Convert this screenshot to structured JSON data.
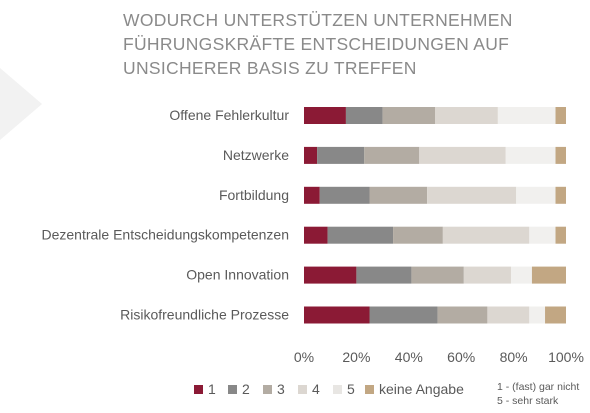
{
  "chart_data": {
    "type": "bar",
    "stacked": true,
    "orientation": "horizontal",
    "title_lines": [
      "WODURCH UNTERSTÜTZEN UNTERNEHMEN",
      "FÜHRUNGSKRÄFTE ENTSCHEIDUNGEN AUF",
      "UNSICHERER BASIS ZU TREFFEN"
    ],
    "categories": [
      "Offene Fehlerkultur",
      "Netzwerke",
      "Fortbildung",
      "Dezentrale Entscheidungskompetenzen",
      "Open Innovation",
      "Risikofreundliche Prozesse"
    ],
    "series": [
      {
        "name": "1",
        "color": "#8b1a35",
        "values": [
          16,
          5,
          6,
          9,
          20,
          25
        ]
      },
      {
        "name": "2",
        "color": "#888888",
        "values": [
          14,
          18,
          19,
          25,
          21,
          26
        ]
      },
      {
        "name": "3",
        "color": "#b3aca3",
        "values": [
          20,
          21,
          22,
          19,
          20,
          19
        ]
      },
      {
        "name": "4",
        "color": "#dcd7d1",
        "values": [
          24,
          33,
          34,
          33,
          18,
          16
        ]
      },
      {
        "name": "5",
        "color": "#f1f0ee",
        "values": [
          22,
          19,
          15,
          10,
          8,
          6
        ]
      },
      {
        "name": "keine Angabe",
        "color": "#c2a783",
        "values": [
          4,
          4,
          4,
          4,
          13,
          8
        ]
      }
    ],
    "xlim": [
      0,
      100
    ],
    "x_ticks": [
      "0%",
      "20%",
      "40%",
      "60%",
      "80%",
      "100%"
    ],
    "legend_position": "bottom",
    "note_lines": [
      "1 - (fast) gar nicht",
      "5 - sehr stark"
    ],
    "grid": false
  }
}
